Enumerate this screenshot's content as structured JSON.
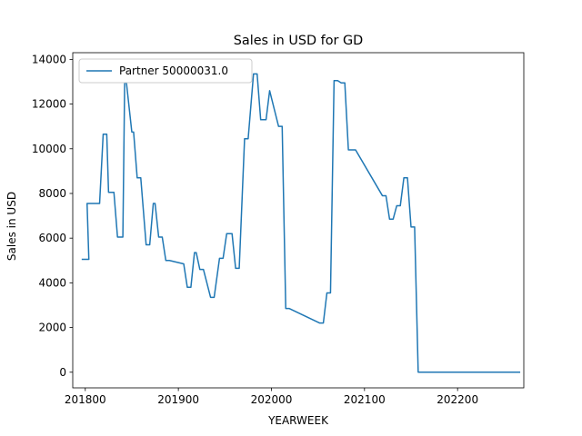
{
  "chart_data": {
    "type": "line",
    "title": "Sales in USD for GD",
    "xlabel": "YEARWEEK",
    "ylabel": "Sales in USD",
    "xlim": [
      201745,
      202237
    ],
    "ylim": [
      -700,
      14300
    ],
    "x_ticks": [
      201800,
      201900,
      202000,
      202100,
      202200
    ],
    "x_tick_labels": [
      "201800",
      "201900",
      "202000",
      "202100",
      "202200"
    ],
    "y_ticks": [
      0,
      2000,
      4000,
      6000,
      8000,
      10000,
      12000,
      14000
    ],
    "y_tick_labels": [
      "0",
      "2000",
      "4000",
      "6000",
      "8000",
      "10000",
      "12000",
      "14000"
    ],
    "grid": false,
    "legend_position": "top-left",
    "colors": {
      "series": "#1f77b4"
    },
    "series": [
      {
        "name": "Partner 50000031.0",
        "x": [
          201750,
          201754,
          201801,
          201808,
          201810,
          201812,
          201813,
          201816,
          201818,
          201821,
          201822,
          201823,
          201826,
          201827,
          201829,
          201831,
          201834,
          201836,
          201838,
          201839,
          201841,
          201843,
          201845,
          201847,
          201903,
          201905,
          201907,
          201909,
          201910,
          201912,
          201914,
          201918,
          201920,
          201923,
          201925,
          201927,
          201930,
          201932,
          201934,
          201937,
          201939,
          201942,
          201944,
          201946,
          201949,
          201951,
          202004,
          202006,
          202008,
          202010,
          202027,
          202029,
          202031,
          202033,
          202035,
          202037,
          202039,
          202041,
          202043,
          202045,
          202047,
          202110,
          202112,
          202114,
          202116,
          202118,
          202120,
          202122,
          202124,
          202126,
          202128,
          202130,
          202131,
          202133,
          202135,
          202137,
          202139,
          202141,
          202143,
          202145,
          202147,
          202149,
          202151,
          202203,
          202205,
          202207,
          202209,
          202211,
          202212,
          202214,
          202216,
          202219,
          202221,
          202223,
          202225,
          202227,
          202229,
          202231,
          202233,
          202235
        ],
        "y": [
          5050,
          5050,
          7550,
          7550,
          10650,
          10650,
          8050,
          8050,
          6050,
          6050,
          12950,
          12950,
          10750,
          10750,
          8700,
          8700,
          5700,
          5700,
          7550,
          7550,
          6050,
          6050,
          5000,
          5000,
          4850,
          3800,
          3800,
          5350,
          5350,
          4600,
          4600,
          3350,
          3350,
          5100,
          5100,
          6200,
          6200,
          4650,
          4650,
          10450,
          10450,
          13350,
          13350,
          11300,
          11300,
          12600,
          11000,
          11000,
          2850,
          2850,
          2200,
          2200,
          3550,
          3550,
          13050,
          13050,
          12950,
          12950,
          9950,
          9950,
          9950,
          7900,
          7900,
          6850,
          6850,
          7450,
          7450,
          8700,
          8700,
          6500,
          6500,
          0,
          0,
          0,
          0,
          0,
          0,
          0,
          0,
          0,
          0,
          0,
          0,
          0,
          0,
          0,
          0,
          0,
          0,
          0,
          0,
          0,
          0,
          0,
          0,
          0,
          0,
          0,
          0,
          0
        ]
      }
    ]
  }
}
